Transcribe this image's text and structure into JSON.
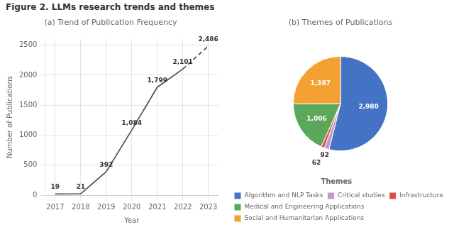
{
  "title": "Figure 2. LLMs research trends and themes",
  "chart_data": [
    {
      "type": "line",
      "title": "(a) Trend of Publication Frequency",
      "xlabel": "Year",
      "ylabel": "Number of Publications",
      "x": [
        2017,
        2018,
        2019,
        2020,
        2021,
        2022,
        2023
      ],
      "series": [
        {
          "color": "#555555",
          "line_style": "solid",
          "values": [
            19,
            21,
            392,
            1084,
            1799,
            2101,
            null
          ],
          "value_labels": [
            "19",
            "21",
            "392",
            "1,084",
            "1,799",
            "2,101",
            null
          ]
        },
        {
          "color": "#555555",
          "line_style": "dashed",
          "values": [
            null,
            null,
            null,
            null,
            null,
            2101,
            2486
          ],
          "value_labels": [
            null,
            null,
            null,
            null,
            null,
            null,
            "2,486"
          ]
        }
      ],
      "xlim": [
        2016.6,
        2023.4
      ],
      "xticks": [
        2017,
        2018,
        2019,
        2020,
        2021,
        2022,
        2023
      ],
      "ylim": [
        0,
        2600
      ],
      "yticks": [
        0,
        500,
        1000,
        1500,
        2000,
        2500
      ],
      "grid": true,
      "data_labels": true
    },
    {
      "type": "pie",
      "title": "(b) Themes of Publications",
      "categories": [
        "Algorithm and NLP Tasks",
        "Critical studies",
        "Infrastructure",
        "Medical and Engineering Applications",
        "Social and Humanitarian Applications"
      ],
      "values": [
        2980,
        92,
        62,
        1006,
        1387
      ],
      "value_labels": [
        "2,980",
        "92",
        "62",
        "1,006",
        "1,387"
      ],
      "colors": [
        "#4472C4",
        "#C099C8",
        "#E05040",
        "#5BA85A",
        "#F5A033"
      ],
      "data_labels": true,
      "legend": "bottom",
      "legend_title": "Themes"
    }
  ]
}
